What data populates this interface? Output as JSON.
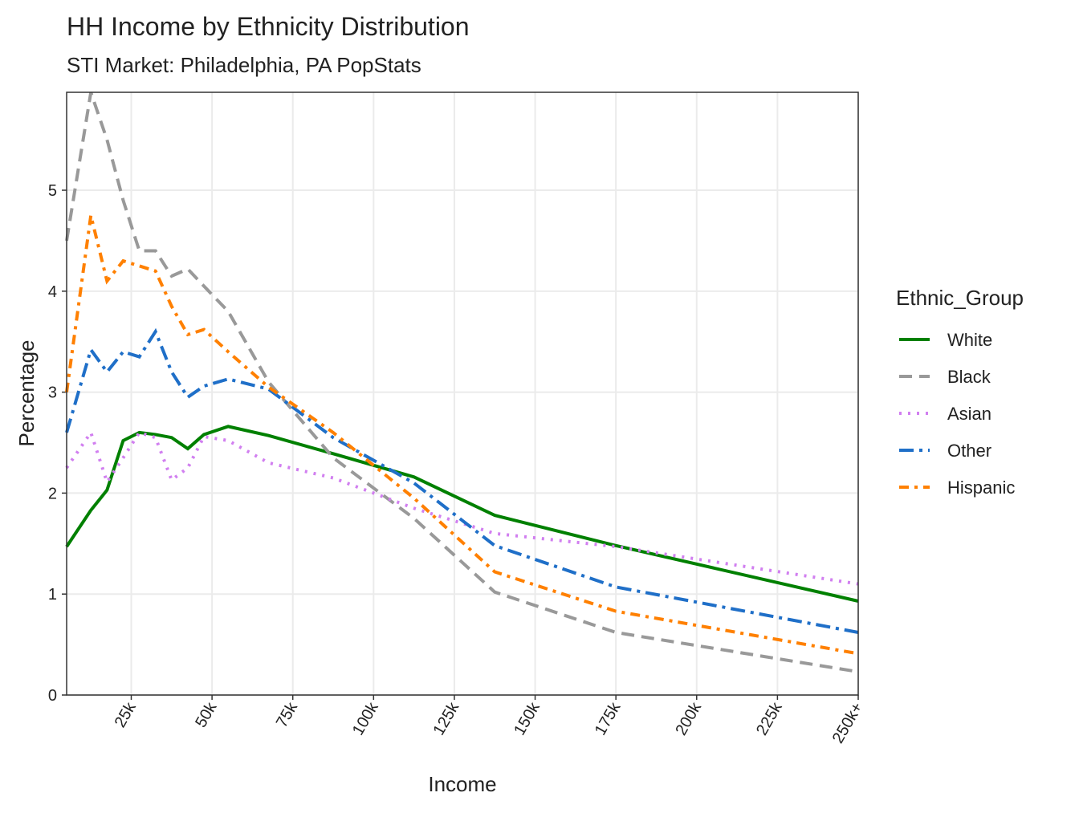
{
  "chart_data": {
    "type": "line",
    "title": "HH Income by Ethnicity Distribution",
    "subtitle": "STI Market: Philadelphia, PA PopStats",
    "x_label": "Income",
    "y_label": "Percentage",
    "legend_title": "Ethnic_Group",
    "legend": "right",
    "grid": true,
    "x": [
      5,
      12.5,
      17.5,
      22.5,
      27.5,
      32.5,
      37.5,
      42.5,
      47.5,
      55,
      67.5,
      87.5,
      112.5,
      137.5,
      175,
      250
    ],
    "xlim": [
      5,
      250
    ],
    "xticks": [
      {
        "value": 25,
        "label": "25k"
      },
      {
        "value": 50,
        "label": "50k"
      },
      {
        "value": 75,
        "label": "75k"
      },
      {
        "value": 100,
        "label": "100k"
      },
      {
        "value": 125,
        "label": "125k"
      },
      {
        "value": 150,
        "label": "150k"
      },
      {
        "value": 175,
        "label": "175k"
      },
      {
        "value": 200,
        "label": "200k"
      },
      {
        "value": 225,
        "label": "225k"
      },
      {
        "value": 250,
        "label": "250k+"
      }
    ],
    "ylim": [
      0,
      5.97
    ],
    "yticks": [
      0,
      1,
      2,
      3,
      4,
      5
    ],
    "series": [
      {
        "name": "White",
        "color": "#008000",
        "linetype": "solid",
        "values": [
          1.47,
          1.83,
          2.03,
          2.52,
          2.6,
          2.58,
          2.55,
          2.44,
          2.58,
          2.66,
          2.57,
          2.39,
          2.16,
          1.78,
          1.48,
          0.93
        ]
      },
      {
        "name": "Black",
        "color": "#999999",
        "linetype": "dashed",
        "values": [
          4.5,
          5.97,
          5.5,
          4.9,
          4.4,
          4.4,
          4.15,
          4.22,
          4.05,
          3.8,
          3.1,
          2.35,
          1.75,
          1.02,
          0.62,
          0.23
        ]
      },
      {
        "name": "Asian",
        "color": "#d17ff0",
        "linetype": "dotted",
        "values": [
          2.25,
          2.6,
          2.11,
          2.35,
          2.6,
          2.55,
          2.13,
          2.25,
          2.56,
          2.52,
          2.3,
          2.15,
          1.85,
          1.6,
          1.47,
          1.1
        ]
      },
      {
        "name": "Other",
        "color": "#1f6fc8",
        "linetype": "longdash-dot",
        "values": [
          2.6,
          3.42,
          3.2,
          3.4,
          3.35,
          3.6,
          3.2,
          2.95,
          3.06,
          3.13,
          3.03,
          2.55,
          2.1,
          1.48,
          1.07,
          0.62
        ]
      },
      {
        "name": "Hispanic",
        "color": "#ff8000",
        "linetype": "dash-dot",
        "values": [
          3.0,
          4.75,
          4.1,
          4.3,
          4.25,
          4.2,
          3.85,
          3.57,
          3.62,
          3.4,
          3.05,
          2.6,
          1.95,
          1.22,
          0.83,
          0.41
        ]
      }
    ]
  }
}
